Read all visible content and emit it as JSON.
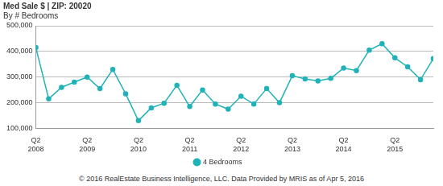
{
  "chart_data": {
    "type": "line",
    "title": "Med Sale $ | ZIP: 20020",
    "subtitle": "By # Bedrooms",
    "footer": "© 2016 RealEstate Business Intelligence, LLC. Data Provided by MRIS as of Apr 5, 2016",
    "categories": [
      "Q2 2008",
      null,
      null,
      null,
      "Q2 2009",
      null,
      null,
      null,
      "Q2 2010",
      null,
      null,
      null,
      "Q2 2011",
      null,
      null,
      null,
      "Q2 2012",
      null,
      null,
      null,
      "Q2 2013",
      null,
      null,
      null,
      "Q2 2014",
      null,
      null,
      null,
      "Q2 2015",
      null,
      null,
      null
    ],
    "series": [
      {
        "name": "4 Bedrooms",
        "color": "#1fb3b8",
        "marker": "circle",
        "line_style": "solid",
        "values": [
          415000,
          215000,
          260000,
          280000,
          300000,
          255000,
          330000,
          235000,
          130000,
          180000,
          198000,
          268000,
          185000,
          250000,
          195000,
          175000,
          225000,
          195000,
          255000,
          200000,
          305000,
          293000,
          285000,
          295000,
          335000,
          325000,
          405000,
          430000,
          375000,
          340000,
          290000,
          372000
        ]
      }
    ],
    "ylim": [
      100000,
      500000
    ],
    "yticks": [
      {
        "value": 100000,
        "label": "100,000"
      },
      {
        "value": 200000,
        "label": "200,000"
      },
      {
        "value": 300000,
        "label": "300,000"
      },
      {
        "value": 400000,
        "label": "400,000"
      },
      {
        "value": 500000,
        "label": "500,000"
      }
    ],
    "grid": true,
    "legend": "bottom"
  }
}
